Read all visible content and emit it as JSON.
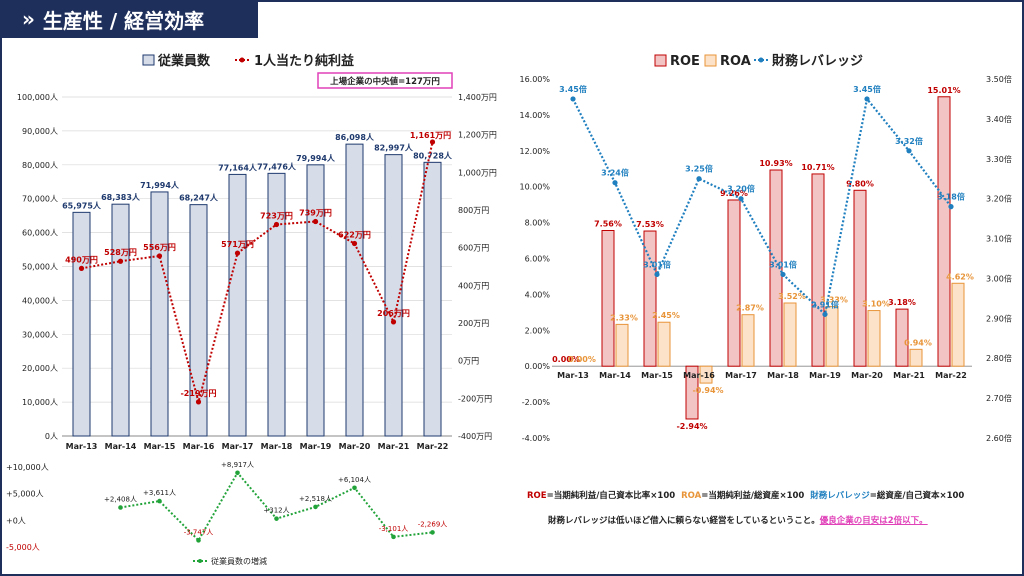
{
  "header": {
    "title": "生産性 / 経営効率",
    "chevron": "»"
  },
  "left_chart": {
    "legend_employees": "従業員数",
    "legend_profit": "1人当たり純利益",
    "median_label": "上場企業の中央値=127万円",
    "colors": {
      "bar": "#d6dce8",
      "bar_border": "#1f3a6e",
      "profit": "#c00000",
      "diff": "#22a33a"
    }
  },
  "right_chart": {
    "legend_roe": "ROE",
    "legend_roa": "ROA",
    "legend_lev": "財務レバレッジ",
    "colors": {
      "roe": "#f2c4c4",
      "roe_border": "#c00000",
      "roa": "#fbe2c8",
      "roa_border": "#e8953a",
      "lev": "#1f7fbf"
    }
  },
  "notes": {
    "roe_def_key": "ROE",
    "roe_def": "=当期純利益/自己資本比率×100",
    "roa_def_key": "ROA",
    "roa_def": "=当期純利益/総資産×100",
    "lev_def_key": "財務レバレッジ",
    "lev_def": "=総資産/自己資本×100",
    "lev_note": "財務レバレッジは低いほど借入に頼らない経営をしているということ。",
    "lev_note_highlight": "優良企業の目安は2倍以下。"
  },
  "chart_data": [
    {
      "type": "bar",
      "categories": [
        "Mar-13",
        "Mar-14",
        "Mar-15",
        "Mar-16",
        "Mar-17",
        "Mar-18",
        "Mar-19",
        "Mar-20",
        "Mar-21",
        "Mar-22"
      ],
      "series": [
        {
          "name": "従業員数",
          "type": "bar",
          "axis": "left",
          "values": [
            65975,
            68383,
            71994,
            68247,
            77164,
            77476,
            79994,
            86098,
            82997,
            80728
          ],
          "labels": [
            "65,975人",
            "68,383人",
            "71,994人",
            "68,247人",
            "77,164人",
            "77,476人",
            "79,994人",
            "86,098人",
            "82,997人",
            "80,728人"
          ]
        },
        {
          "name": "1人当たり純利益",
          "type": "line",
          "axis": "right",
          "values": [
            490,
            528,
            556,
            -219,
            571,
            723,
            739,
            622,
            206,
            1161
          ],
          "labels": [
            "490万円",
            "528万円",
            "556万円",
            "-219万円",
            "571万円",
            "723万円",
            "739万円",
            "622万円",
            "206万円",
            "1,161万円"
          ]
        }
      ],
      "ylim_left": [
        0,
        100000
      ],
      "ylim_right": [
        -400,
        1400
      ],
      "yticks_left": [
        "0人",
        "10,000人",
        "20,000人",
        "30,000人",
        "40,000人",
        "50,000人",
        "60,000人",
        "70,000人",
        "80,000人",
        "90,000人",
        "100,000人"
      ],
      "yticks_right": [
        "-400万円",
        "-200万円",
        "0万円",
        "200万円",
        "400万円",
        "600万円",
        "800万円",
        "1,000万円",
        "1,200万円",
        "1,400万円"
      ]
    },
    {
      "type": "line",
      "categories": [
        "Mar-13",
        "Mar-14",
        "Mar-15",
        "Mar-16",
        "Mar-17",
        "Mar-18",
        "Mar-19",
        "Mar-20",
        "Mar-21",
        "Mar-22"
      ],
      "series": [
        {
          "name": "従業員数の増減",
          "values": [
            null,
            2408,
            3611,
            -3747,
            8917,
            312,
            2518,
            6104,
            -3101,
            -2269
          ],
          "labels": [
            "",
            "+2,408人",
            "+3,611人",
            "-3,747人",
            "+8,917人",
            "+312人",
            "+2,518人",
            "+6,104人",
            "-3,101人",
            "-2,269人"
          ]
        }
      ],
      "ylim": [
        -5000,
        10000
      ],
      "yticks": [
        "-5,000人",
        "+0人",
        "+5,000人",
        "+10,000人"
      ]
    },
    {
      "type": "bar",
      "categories": [
        "Mar-13",
        "Mar-14",
        "Mar-15",
        "Mar-16",
        "Mar-17",
        "Mar-18",
        "Mar-19",
        "Mar-20",
        "Mar-21",
        "Mar-22"
      ],
      "series": [
        {
          "name": "ROE",
          "type": "bar",
          "axis": "left",
          "values": [
            0.0,
            7.56,
            7.53,
            -2.94,
            9.26,
            10.93,
            10.71,
            9.8,
            3.18,
            15.01
          ],
          "labels": [
            "0.00%",
            "7.56%",
            "7.53%",
            "-2.94%",
            "9.26%",
            "10.93%",
            "10.71%",
            "9.80%",
            "3.18%",
            "15.01%"
          ]
        },
        {
          "name": "ROA",
          "type": "bar",
          "axis": "left",
          "values": [
            0.0,
            2.33,
            2.45,
            -0.94,
            2.87,
            3.52,
            3.33,
            3.1,
            0.94,
            4.62
          ],
          "labels": [
            "0.00%",
            "2.33%",
            "2.45%",
            "-0.94%",
            "2.87%",
            "3.52%",
            "3.33%",
            "3.10%",
            "0.94%",
            "4.62%"
          ]
        },
        {
          "name": "財務レバレッジ",
          "type": "line",
          "axis": "right",
          "values": [
            3.45,
            3.24,
            3.01,
            3.25,
            3.2,
            3.01,
            2.91,
            3.45,
            3.32,
            3.18
          ],
          "labels": [
            "3.45倍",
            "3.24倍",
            "3.01倍",
            "3.25倍",
            "3.20倍",
            "3.01倍",
            "2.91倍",
            "3.45倍",
            "3.32倍",
            "3.18倍"
          ]
        }
      ],
      "ylim_left": [
        -4,
        16
      ],
      "ylim_right": [
        2.6,
        3.5
      ],
      "yticks_left": [
        "-4.00%",
        "-2.00%",
        "0.00%",
        "2.00%",
        "4.00%",
        "6.00%",
        "8.00%",
        "10.00%",
        "12.00%",
        "14.00%",
        "16.00%"
      ],
      "yticks_right": [
        "2.60倍",
        "2.70倍",
        "2.80倍",
        "2.90倍",
        "3.00倍",
        "3.10倍",
        "3.20倍",
        "3.30倍",
        "3.40倍",
        "3.50倍"
      ]
    }
  ]
}
